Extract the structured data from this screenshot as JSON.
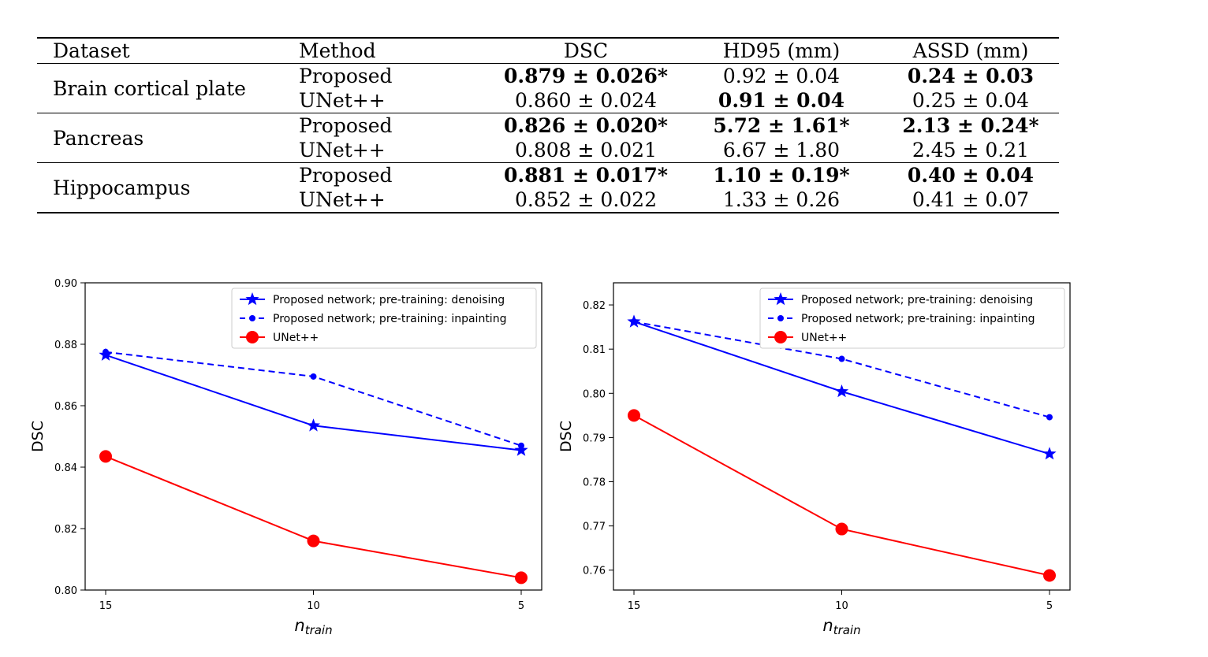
{
  "table": {
    "headers": [
      "Dataset",
      "Method",
      "DSC",
      "HD95 (mm)",
      "ASSD (mm)"
    ],
    "groups": [
      {
        "dataset": "Brain cortical plate",
        "rows": [
          {
            "method": "Proposed",
            "dsc": "0.879 ± 0.026*",
            "hd95": "0.92 ± 0.04",
            "assd": "0.24 ± 0.03",
            "bold": [
              "dsc",
              "assd"
            ]
          },
          {
            "method": "UNet++",
            "dsc": "0.860 ± 0.024",
            "hd95": "0.91 ± 0.04",
            "assd": "0.25 ± 0.04",
            "bold": [
              "hd95"
            ]
          }
        ]
      },
      {
        "dataset": "Pancreas",
        "rows": [
          {
            "method": "Proposed",
            "dsc": "0.826 ± 0.020*",
            "hd95": "5.72 ± 1.61*",
            "assd": "2.13 ± 0.24*",
            "bold": [
              "dsc",
              "hd95",
              "assd"
            ]
          },
          {
            "method": "UNet++",
            "dsc": "0.808 ± 0.021",
            "hd95": "6.67 ± 1.80",
            "assd": "2.45 ± 0.21",
            "bold": []
          }
        ]
      },
      {
        "dataset": "Hippocampus",
        "rows": [
          {
            "method": "Proposed",
            "dsc": "0.881 ± 0.017*",
            "hd95": "1.10 ± 0.19*",
            "assd": "0.40 ± 0.04",
            "bold": [
              "dsc",
              "hd95",
              "assd"
            ]
          },
          {
            "method": "UNet++",
            "dsc": "0.852 ± 0.022",
            "hd95": "1.33 ± 0.26",
            "assd": "0.41 ± 0.07",
            "bold": []
          }
        ]
      }
    ]
  },
  "chart_data": [
    {
      "type": "line",
      "x": [
        15,
        10,
        5
      ],
      "xticks": [
        "15",
        "10",
        "5"
      ],
      "xlabel_base": "n",
      "xlabel_sub": "train",
      "ylabel": "DSC",
      "ylim": [
        0.8,
        0.9
      ],
      "yticks": [
        "0.80",
        "0.82",
        "0.84",
        "0.86",
        "0.88",
        "0.90"
      ],
      "grid": false,
      "legend_position": "top-right",
      "series": [
        {
          "name": "Proposed network; pre-training: denoising",
          "values": [
            0.8765,
            0.8535,
            0.8455
          ],
          "color": "#0000ff",
          "line": "solid",
          "marker": "star"
        },
        {
          "name": "Proposed network; pre-training: inpainting",
          "values": [
            0.8775,
            0.8695,
            0.847
          ],
          "color": "#0000ff",
          "line": "dashed",
          "marker": "dot"
        },
        {
          "name": "UNet++",
          "values": [
            0.8435,
            0.816,
            0.804
          ],
          "color": "#ff0000",
          "line": "solid",
          "marker": "circle"
        }
      ]
    },
    {
      "type": "line",
      "x": [
        15,
        10,
        5
      ],
      "xticks": [
        "15",
        "10",
        "5"
      ],
      "xlabel_base": "n",
      "xlabel_sub": "train",
      "ylabel": "DSC",
      "ylim": [
        0.7555,
        0.825
      ],
      "yticks": [
        "0.76",
        "0.77",
        "0.78",
        "0.79",
        "0.80",
        "0.81",
        "0.82"
      ],
      "grid": false,
      "legend_position": "top-right",
      "series": [
        {
          "name": "Proposed network; pre-training: denoising",
          "values": [
            0.8162,
            0.8004,
            0.7863
          ],
          "color": "#0000ff",
          "line": "solid",
          "marker": "star"
        },
        {
          "name": "Proposed network; pre-training: inpainting",
          "values": [
            0.8162,
            0.8078,
            0.7946
          ],
          "color": "#0000ff",
          "line": "dashed",
          "marker": "dot"
        },
        {
          "name": "UNet++",
          "values": [
            0.795,
            0.7693,
            0.7588
          ],
          "color": "#ff0000",
          "line": "solid",
          "marker": "circle"
        }
      ]
    }
  ]
}
